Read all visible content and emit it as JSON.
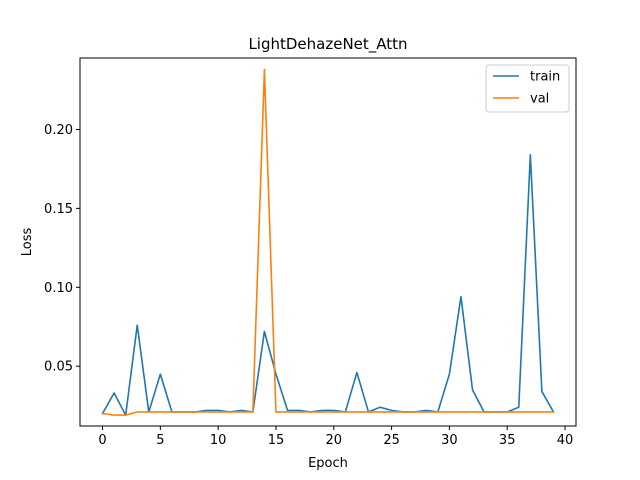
{
  "chart_data": {
    "type": "line",
    "title": "LightDehazeNet_Attn",
    "xlabel": "Epoch",
    "ylabel": "Loss",
    "xlim": [
      -1.95,
      40.95
    ],
    "ylim": [
      0.0121,
      0.2453
    ],
    "xticks": [
      0,
      5,
      10,
      15,
      20,
      25,
      30,
      35,
      40
    ],
    "yticks": [
      0.05,
      0.1,
      0.15,
      0.2
    ],
    "ytick_labels": [
      "0.05",
      "0.10",
      "0.15",
      "0.20"
    ],
    "legend_position": "top-right",
    "grid": false,
    "series": [
      {
        "name": "train",
        "color": "#1f77b4",
        "x": [
          0,
          1,
          2,
          3,
          4,
          5,
          6,
          7,
          8,
          9,
          10,
          11,
          12,
          13,
          14,
          15,
          16,
          17,
          18,
          19,
          20,
          21,
          22,
          23,
          24,
          25,
          26,
          27,
          28,
          29,
          30,
          31,
          32,
          33,
          34,
          35,
          36,
          37,
          38,
          39
        ],
        "values": [
          0.02,
          0.033,
          0.019,
          0.076,
          0.021,
          0.045,
          0.021,
          0.021,
          0.021,
          0.022,
          0.022,
          0.021,
          0.022,
          0.021,
          0.072,
          0.045,
          0.022,
          0.022,
          0.021,
          0.022,
          0.022,
          0.021,
          0.046,
          0.021,
          0.024,
          0.022,
          0.021,
          0.021,
          0.022,
          0.021,
          0.045,
          0.094,
          0.035,
          0.021,
          0.021,
          0.021,
          0.024,
          0.184,
          0.034,
          0.021
        ]
      },
      {
        "name": "val",
        "color": "#ff7f0e",
        "x": [
          0,
          1,
          2,
          3,
          4,
          5,
          6,
          7,
          8,
          9,
          10,
          11,
          12,
          13,
          14,
          15,
          16,
          17,
          18,
          19,
          20,
          21,
          22,
          23,
          24,
          25,
          26,
          27,
          28,
          29,
          30,
          31,
          32,
          33,
          34,
          35,
          36,
          37,
          38,
          39
        ],
        "values": [
          0.02,
          0.019,
          0.019,
          0.021,
          0.021,
          0.021,
          0.021,
          0.021,
          0.021,
          0.021,
          0.021,
          0.021,
          0.021,
          0.021,
          0.238,
          0.021,
          0.021,
          0.021,
          0.021,
          0.021,
          0.021,
          0.021,
          0.021,
          0.021,
          0.021,
          0.021,
          0.021,
          0.021,
          0.021,
          0.021,
          0.021,
          0.021,
          0.021,
          0.021,
          0.021,
          0.021,
          0.021,
          0.021,
          0.021,
          0.021
        ]
      }
    ]
  }
}
